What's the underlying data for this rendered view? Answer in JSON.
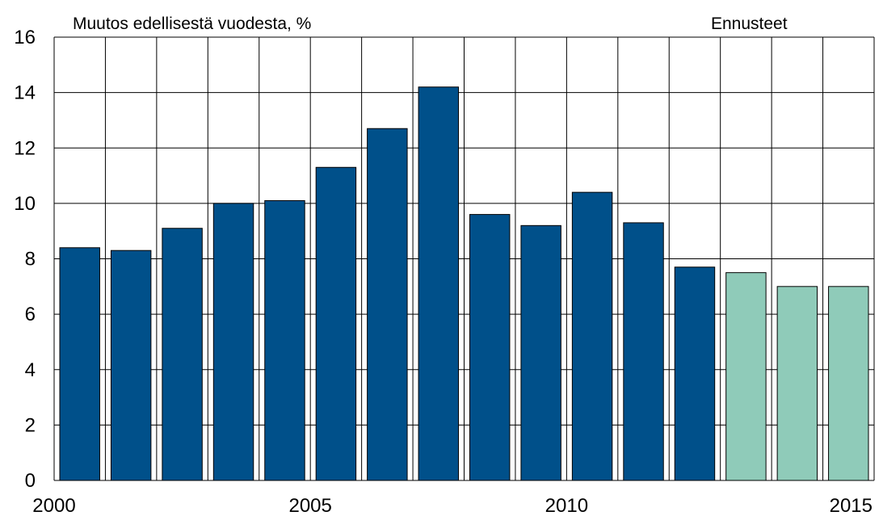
{
  "chart_data": {
    "type": "bar",
    "ylabel": "Muutos edellisestä vuodesta, %",
    "annotation": "Ennusteet",
    "ylim": [
      0,
      16
    ],
    "yticks": [
      0,
      2,
      4,
      6,
      8,
      10,
      12,
      14,
      16
    ],
    "x_tick_labels": [
      "2000",
      "2005",
      "2010",
      "2015"
    ],
    "grid": true,
    "categories": [
      "2000",
      "2001",
      "2002",
      "2003",
      "2004",
      "2005",
      "2006",
      "2007",
      "2008",
      "2009",
      "2010",
      "2011",
      "2012",
      "2013",
      "2014",
      "2015"
    ],
    "series": [
      {
        "values": [
          8.4,
          8.3,
          9.1,
          10.0,
          10.1,
          11.3,
          12.7,
          14.2,
          9.6,
          9.2,
          10.4,
          9.3,
          7.7,
          7.5,
          7.0,
          7.0
        ]
      }
    ],
    "forecast_from": "2013",
    "colors": {
      "actual": "#00508a",
      "forecast": "#8fcbb9",
      "grid": "#000000"
    }
  }
}
